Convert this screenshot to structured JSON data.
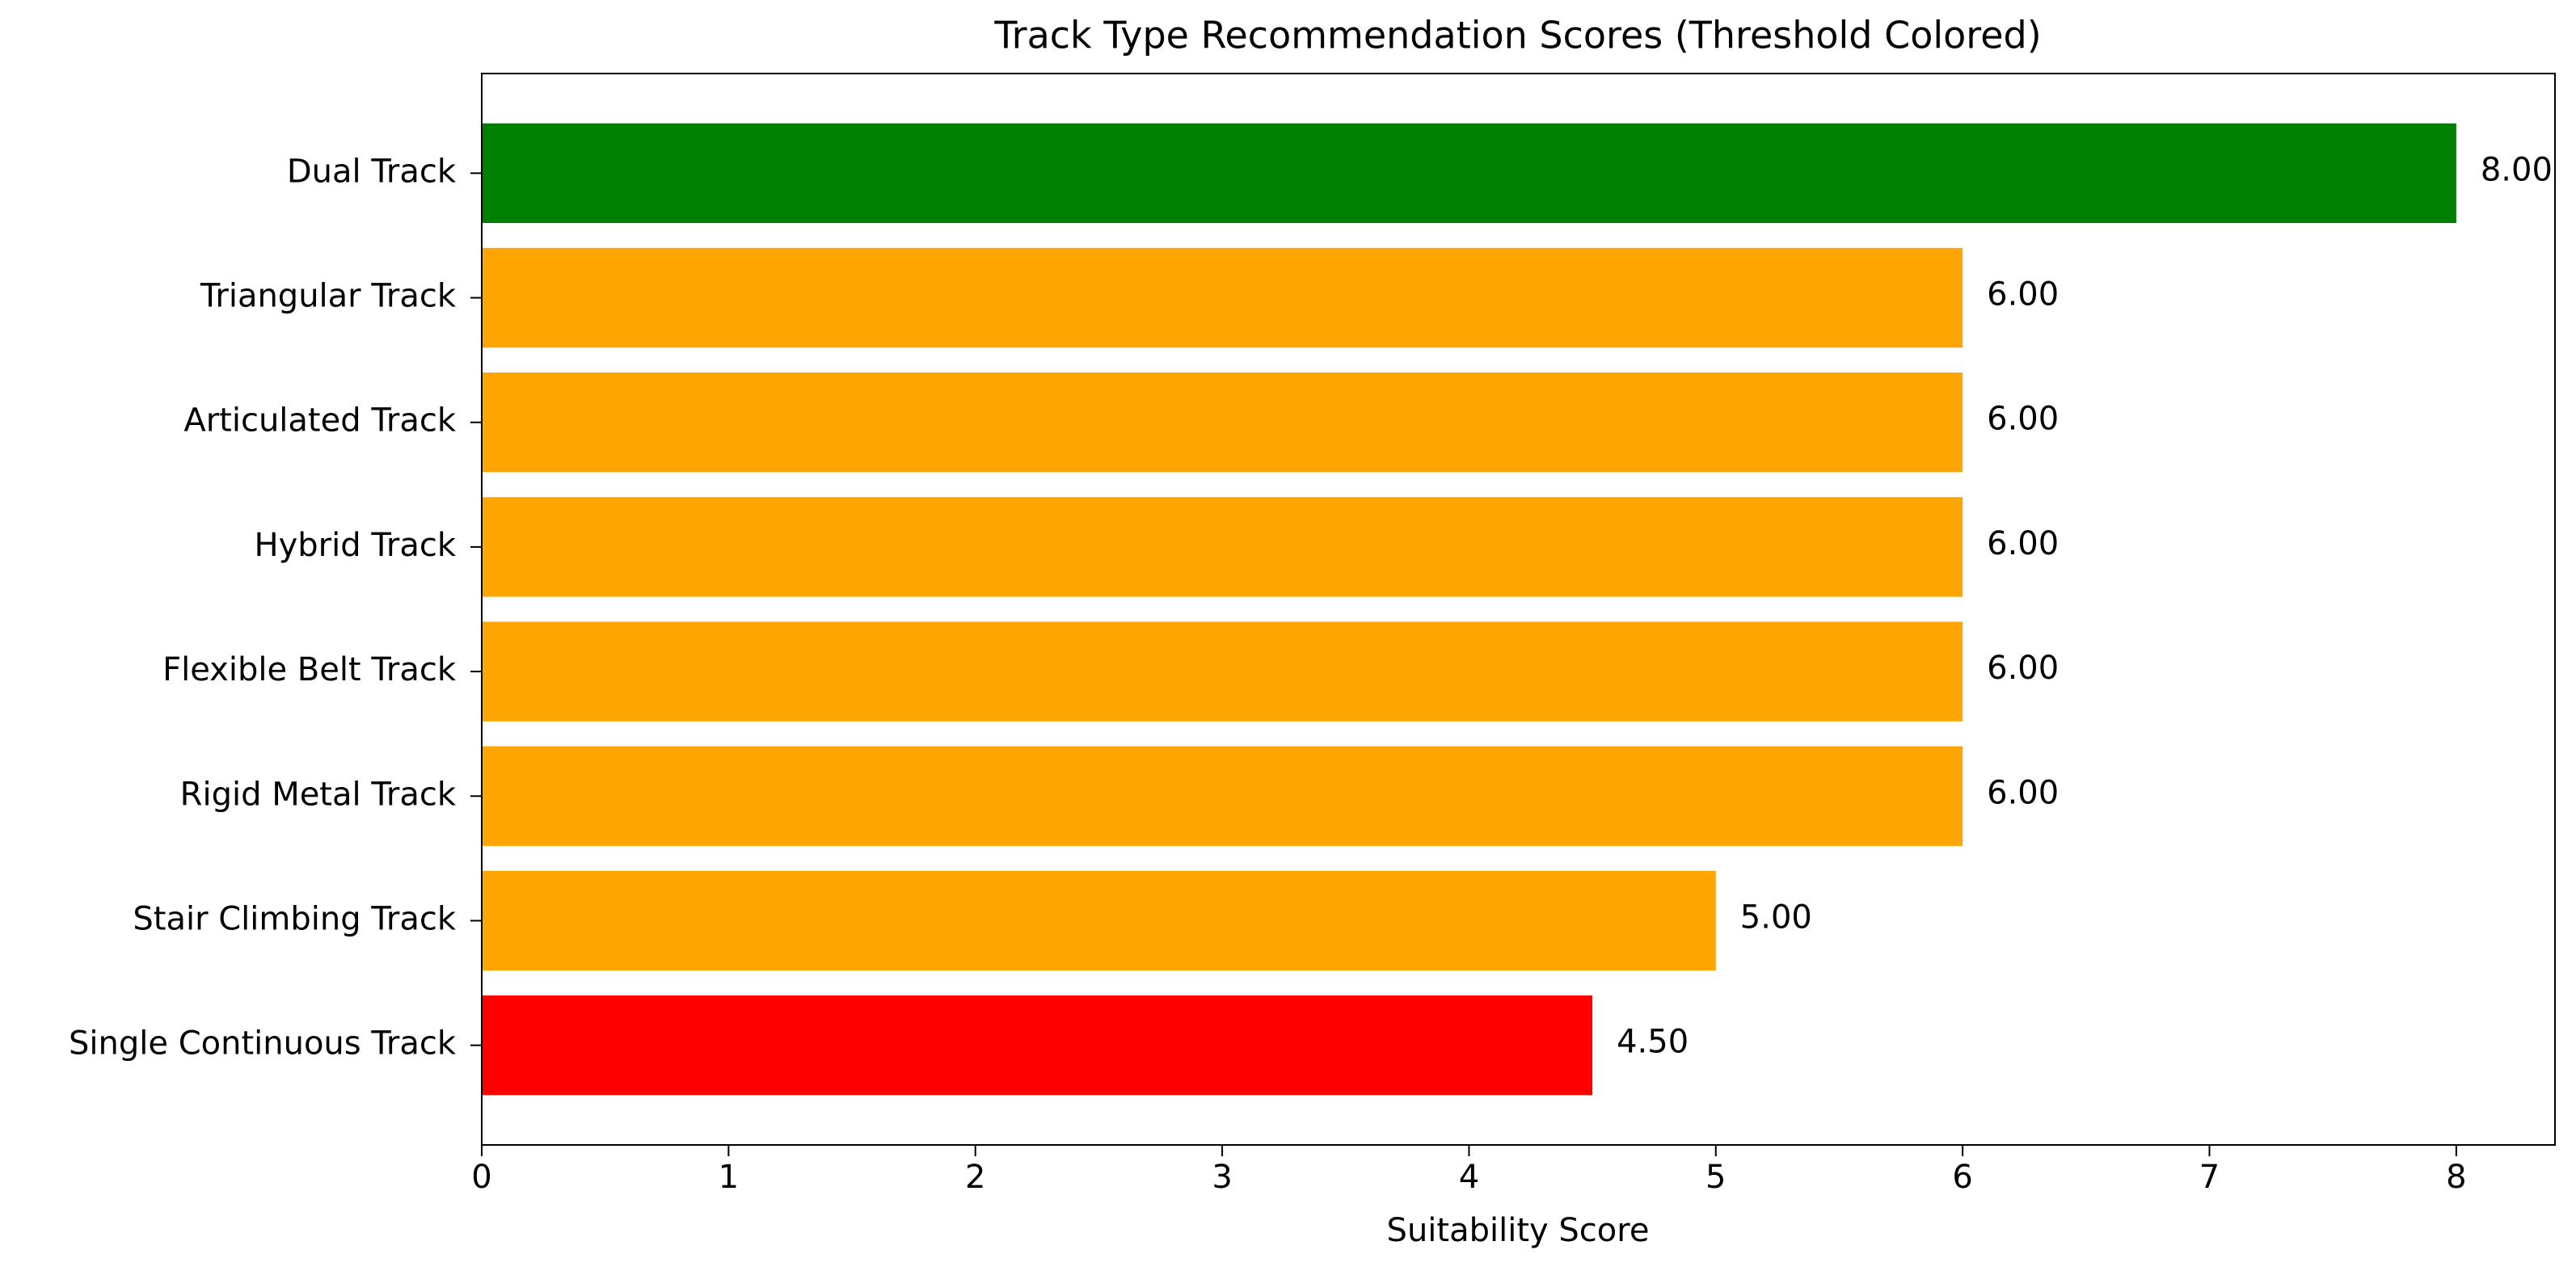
{
  "chart_data": {
    "type": "barh",
    "title": "Track Type Recommendation Scores (Threshold Colored)",
    "x_label": "Suitability Score",
    "categories": [
      "Dual Track",
      "Triangular Track",
      "Articulated Track",
      "Hybrid Track",
      "Flexible Belt Track",
      "Rigid Metal Track",
      "Stair Climbing Track",
      "Single Continuous Track"
    ],
    "values": [
      8,
      6,
      6,
      6,
      6,
      6,
      5,
      4.5
    ],
    "value_labels": [
      "8.00",
      "6.00",
      "6.00",
      "6.00",
      "6.00",
      "6.00",
      "5.00",
      "4.50"
    ],
    "colors": [
      "#008000",
      "#ffa500",
      "#ffa500",
      "#ffa500",
      "#ffa500",
      "#ffa500",
      "#ffa500",
      "#ff0000"
    ],
    "xlim": [
      0,
      8.4
    ],
    "xticks": [
      0,
      1,
      2,
      3,
      4,
      5,
      6,
      7,
      8
    ],
    "grid": false
  }
}
